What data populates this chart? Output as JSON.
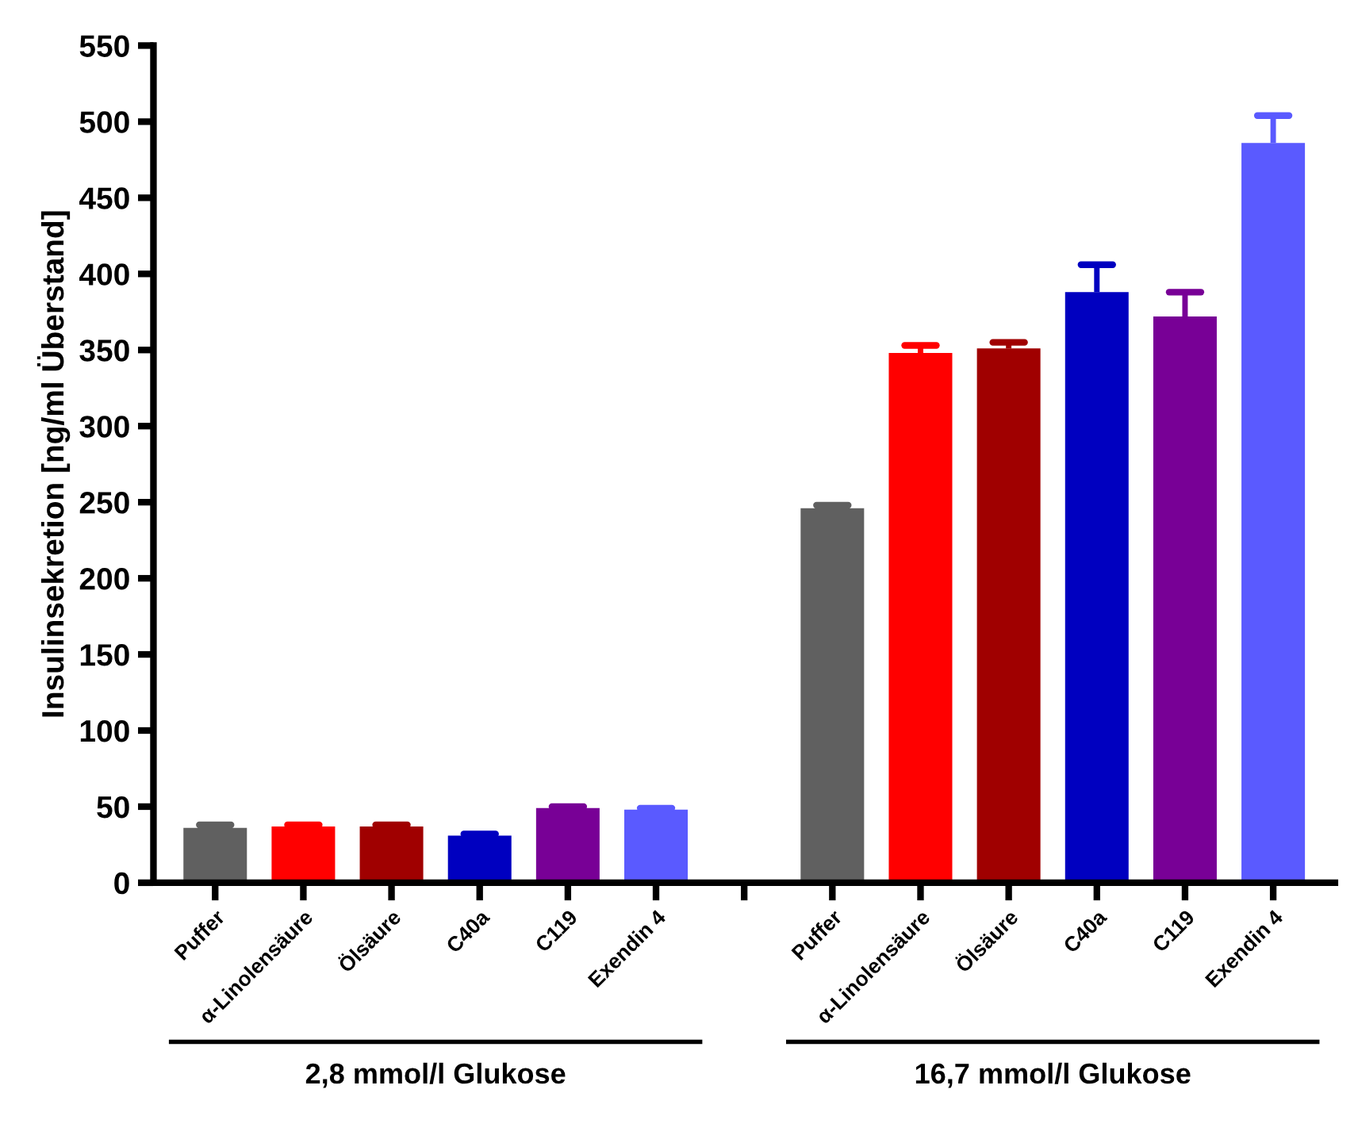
{
  "chart_data": {
    "type": "bar",
    "ylabel": "Insulinsekretion [ng/ml Überstand]",
    "categories": [
      "Puffer",
      "α-Linolensäure",
      "Ölsäure",
      "C40a",
      "C119",
      "Exendin 4",
      null,
      "Puffer",
      "α-Linolensäure",
      "Ölsäure",
      "C40a",
      "C119",
      "Exendin 4"
    ],
    "values": [
      36,
      37,
      37,
      31,
      49,
      48,
      null,
      246,
      348,
      351,
      388,
      372,
      486
    ],
    "errors": [
      [
        36,
        38
      ],
      [
        37,
        38
      ],
      [
        37,
        38
      ],
      [
        31,
        32
      ],
      [
        49,
        50
      ],
      [
        48,
        49
      ],
      null,
      [
        246,
        248
      ],
      [
        348,
        353
      ],
      [
        351,
        355
      ],
      [
        388,
        406
      ],
      [
        372,
        388
      ],
      [
        486,
        504
      ]
    ],
    "colors": [
      "#606060",
      "#ff0000",
      "#a00000",
      "#0000c0",
      "#780096",
      "#5a5aff",
      null,
      "#606060",
      "#ff0000",
      "#a00000",
      "#0000c0",
      "#780096",
      "#5a5aff"
    ],
    "ylim": [
      0,
      550
    ],
    "yticks": [
      0,
      50,
      100,
      150,
      200,
      250,
      300,
      350,
      400,
      450,
      500,
      550
    ],
    "annotations": [
      "2,8 mmol/l Glukose",
      "16,7 mmol/l Glukose"
    ],
    "grid": false,
    "legend": false
  }
}
